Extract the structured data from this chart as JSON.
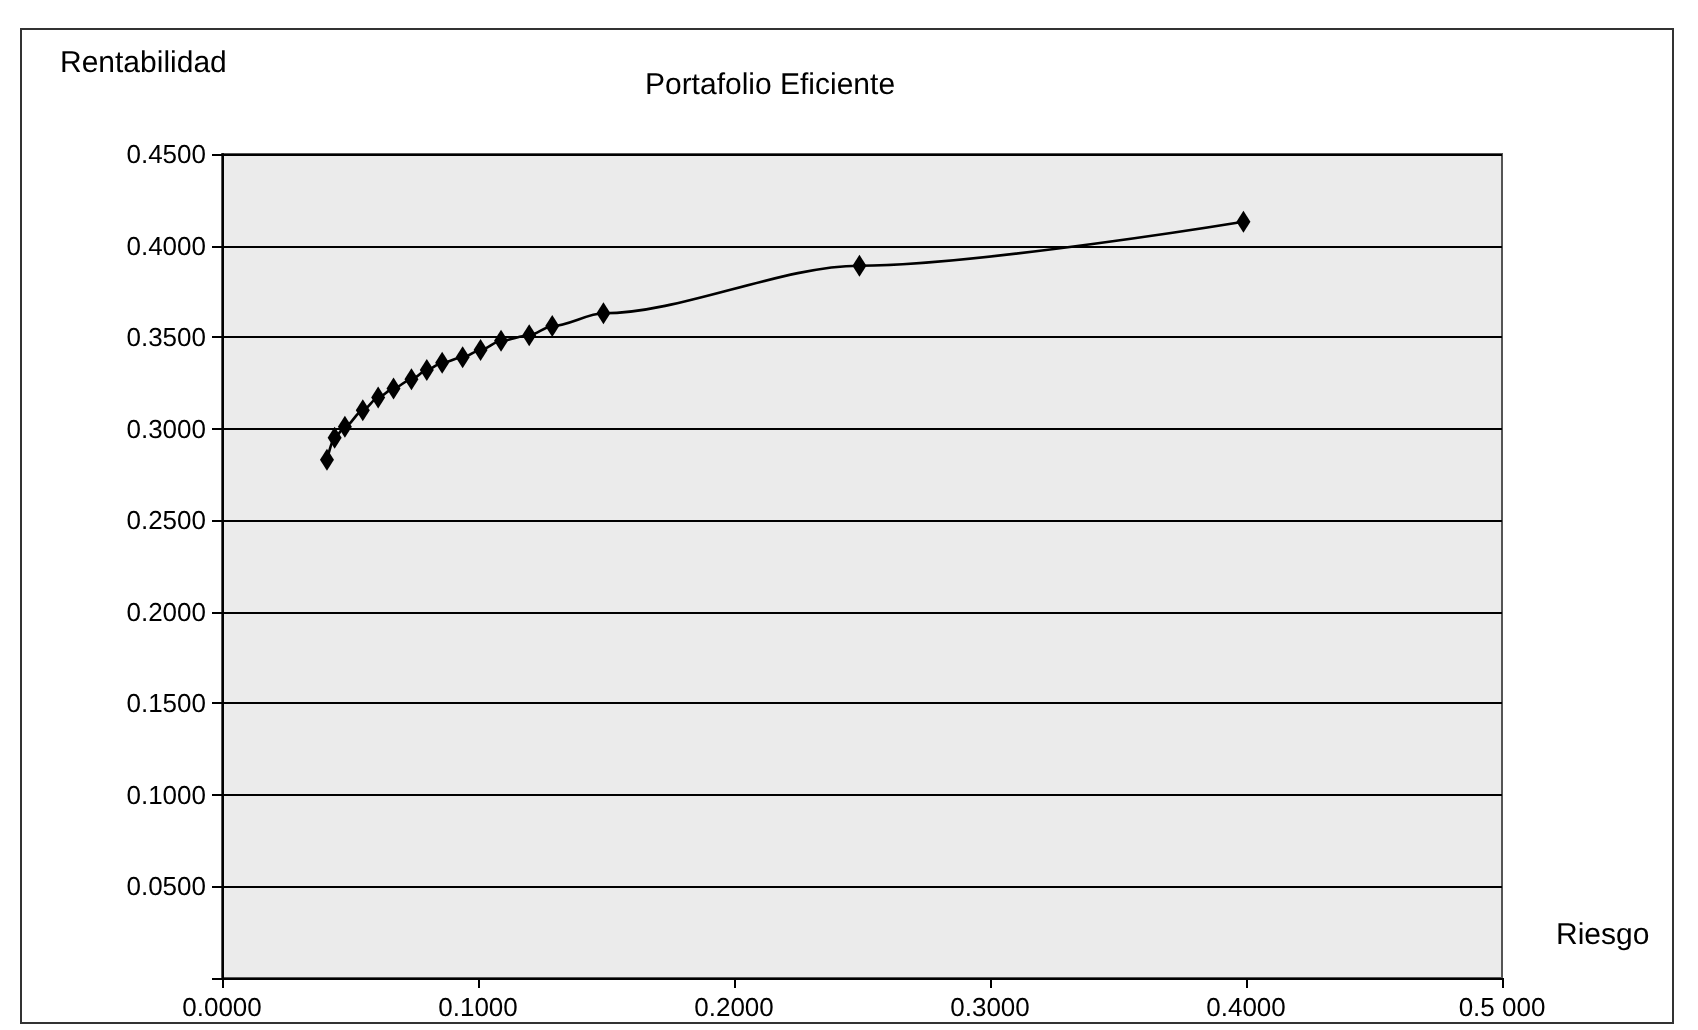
{
  "chart_data": {
    "type": "line",
    "title": "Portafolio Eficiente",
    "xlabel": "Riesgo",
    "ylabel": "Rentabilidad",
    "series": [
      {
        "color": "#000000",
        "x": [
          0.041,
          0.044,
          0.048,
          0.055,
          0.061,
          0.067,
          0.074,
          0.08,
          0.086,
          0.094,
          0.101,
          0.109,
          0.12,
          0.129,
          0.149,
          0.249,
          0.399
        ],
        "values": [
          0.283,
          0.295,
          0.301,
          0.31,
          0.317,
          0.322,
          0.327,
          0.332,
          0.336,
          0.339,
          0.343,
          0.348,
          0.351,
          0.356,
          0.363,
          0.389,
          0.413
        ]
      }
    ],
    "xlim": [
      0,
      0.5
    ],
    "ylim": [
      0,
      0.45
    ],
    "xticks": [
      {
        "value": 0,
        "label": "0.0000"
      },
      {
        "value": 0.1,
        "label": "0.1000"
      },
      {
        "value": 0.2,
        "label": "0.2000"
      },
      {
        "value": 0.3,
        "label": "0.3000"
      },
      {
        "value": 0.4,
        "label": "0.4000"
      },
      {
        "value": 0.5,
        "label": "0.5 000"
      }
    ],
    "yticks": [
      {
        "value": 0,
        "label": null
      },
      {
        "value": 0.05,
        "label": "0.0500"
      },
      {
        "value": 0.1,
        "label": "0.1000"
      },
      {
        "value": 0.15,
        "label": "0.1500"
      },
      {
        "value": 0.2,
        "label": "0.2000"
      },
      {
        "value": 0.25,
        "label": "0.2500"
      },
      {
        "value": 0.3,
        "label": "0.3000"
      },
      {
        "value": 0.35,
        "label": "0.3500"
      },
      {
        "value": 0.4,
        "label": "0.4000"
      },
      {
        "value": 0.45,
        "label": "0.4500"
      }
    ],
    "grid": "y",
    "marker": "diamond",
    "line_style": "solid"
  }
}
